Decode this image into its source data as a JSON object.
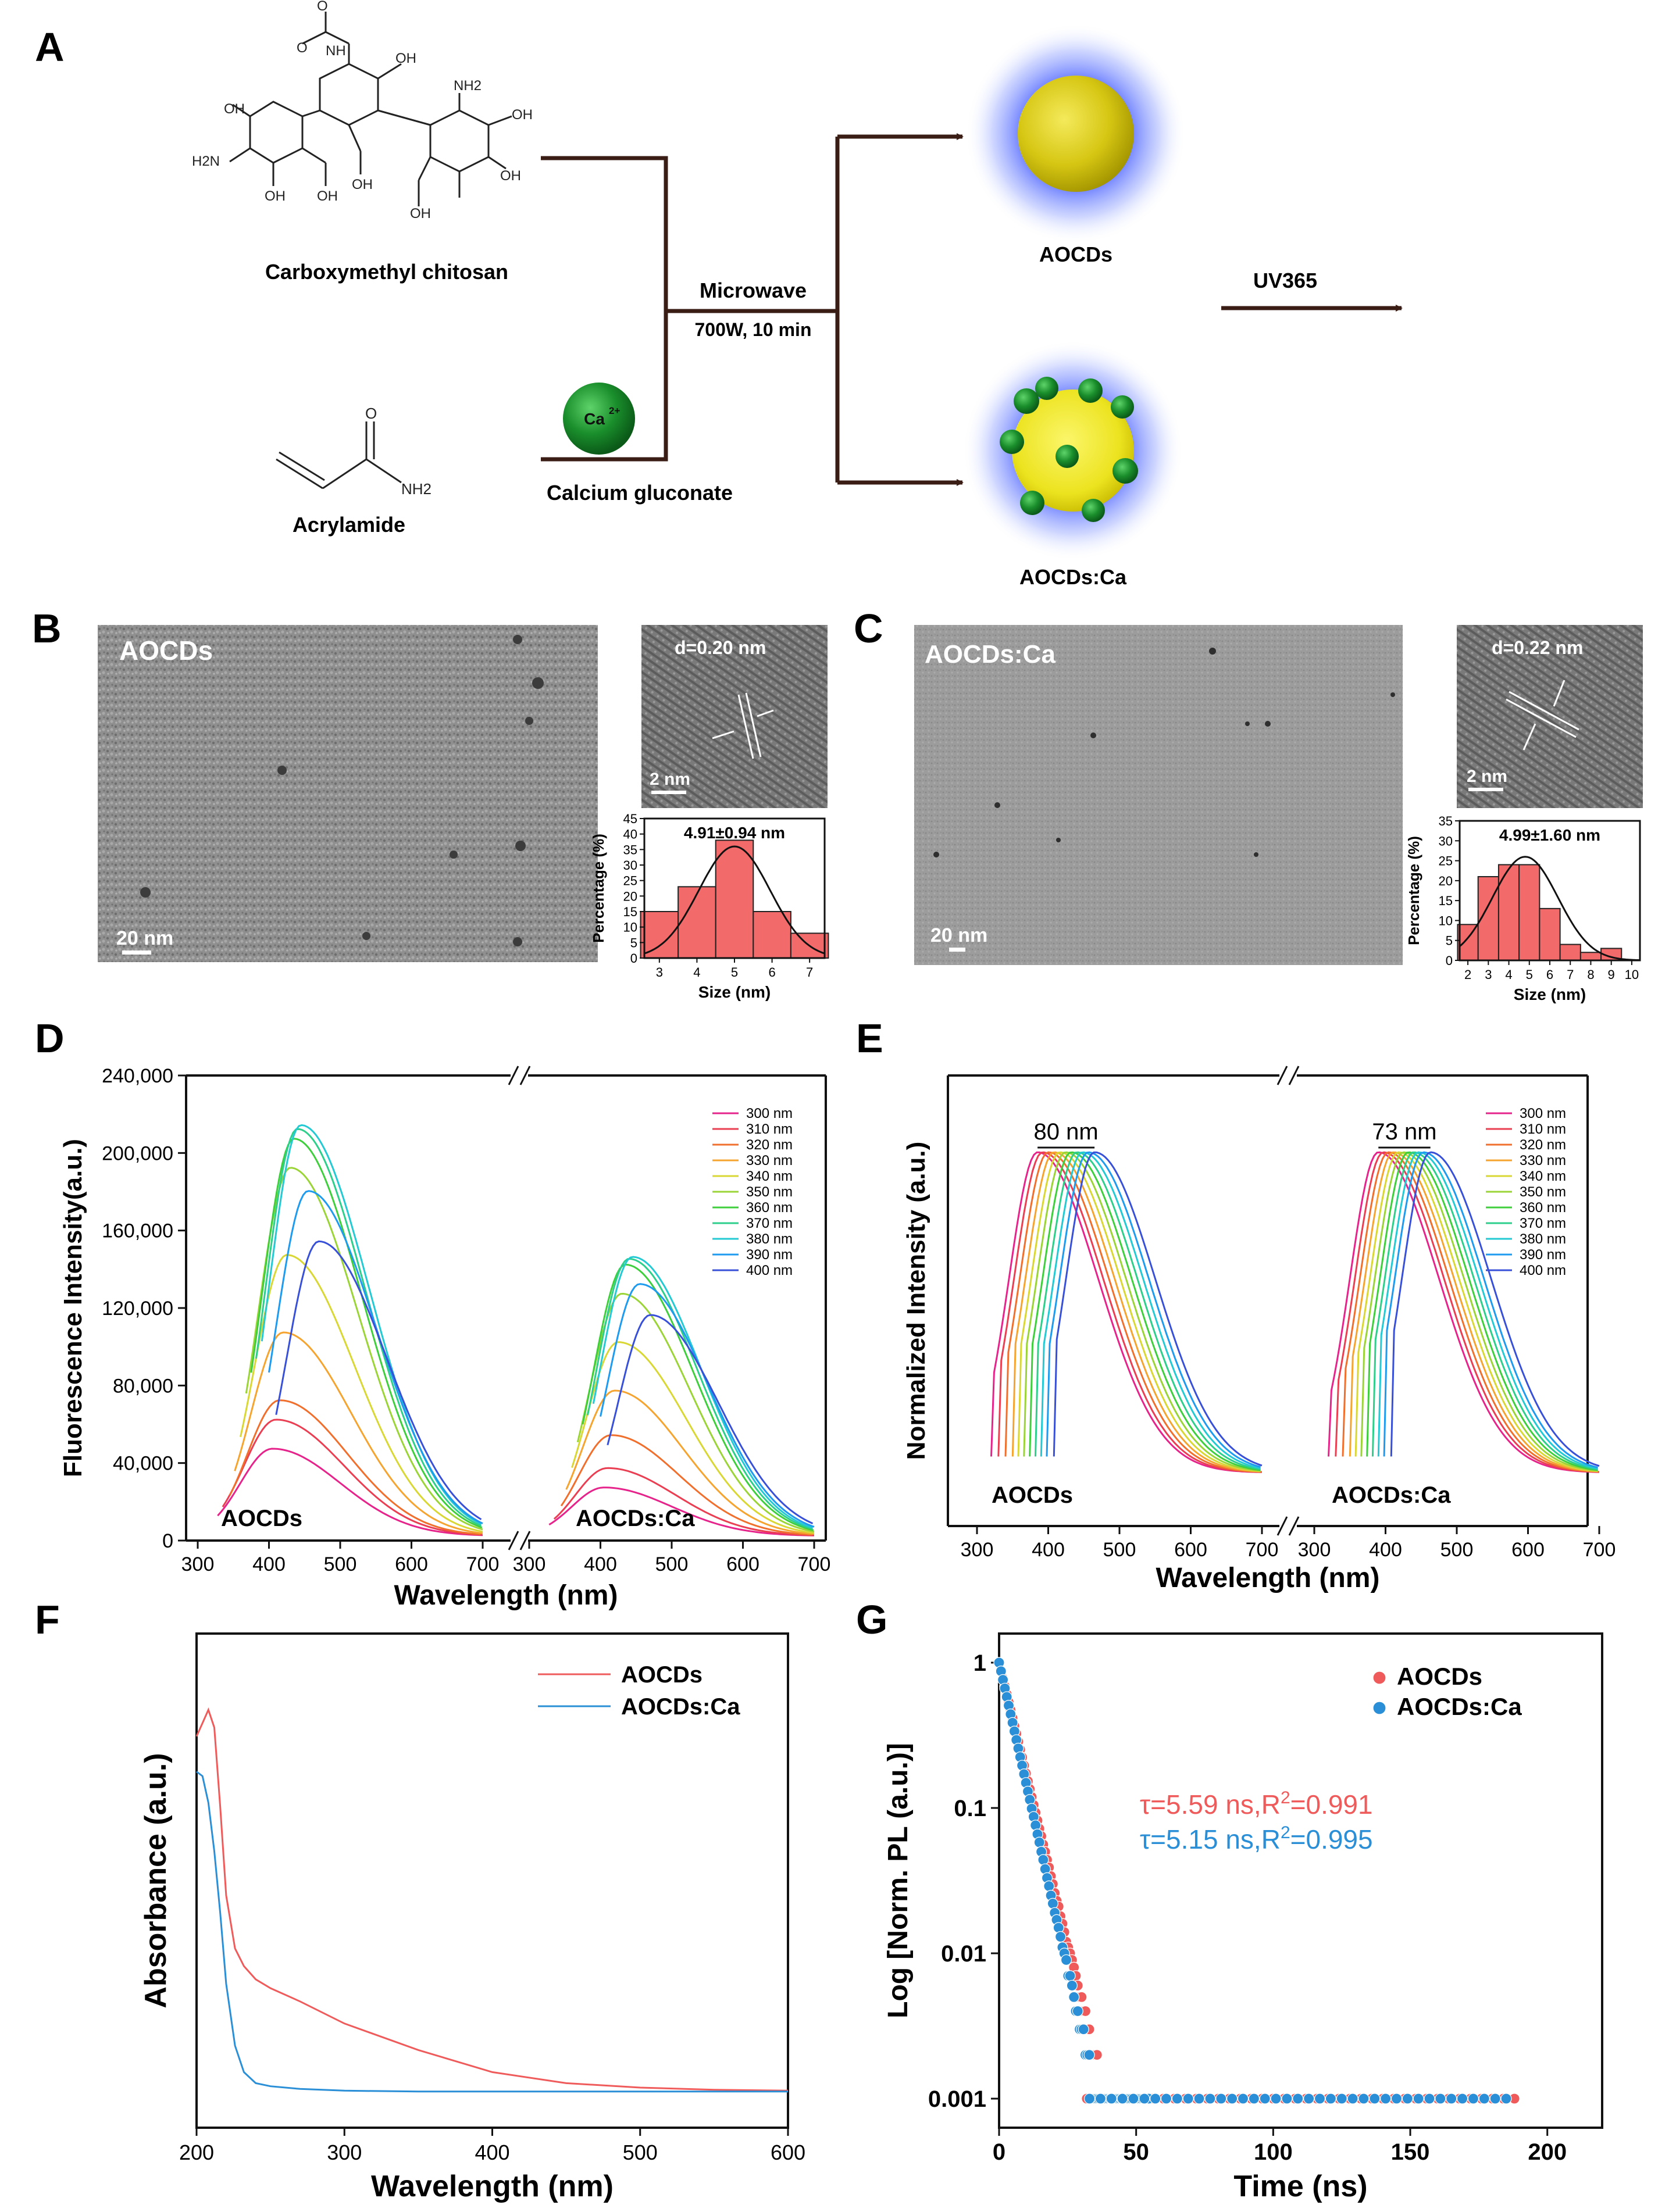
{
  "panel_labels": {
    "A": "A",
    "B": "B",
    "C": "C",
    "D": "D",
    "E": "E",
    "F": "F",
    "G": "G"
  },
  "scheme": {
    "precursor1": "Carboxymethyl chitosan",
    "precursor2": "Acrylamide",
    "precursor3": "Calcium gluconate",
    "ion_label": "Ca",
    "ion_charge": "2+",
    "process_line1": "Microwave",
    "process_line2": "700W, 10 min",
    "product1": "AOCDs",
    "product2": "AOCDs:Ca",
    "uv": "UV365",
    "atoms": {
      "oh": "OH",
      "h2n": "H2N",
      "nh2": "NH2",
      "nh": "NH",
      "o": "O"
    }
  },
  "tem": {
    "B": {
      "label": "AOCDs",
      "scalebar": "20 nm",
      "hr_spacing": "d=0.20 nm",
      "hr_scalebar": "2 nm"
    },
    "C": {
      "label": "AOCDs:Ca",
      "scalebar": "20 nm",
      "hr_spacing": "d=0.22 nm",
      "hr_scalebar": "2 nm"
    }
  },
  "colors": {
    "excitation": [
      "#e6238b",
      "#ea3f52",
      "#f06f2d",
      "#f5a42f",
      "#d9d734",
      "#9bd437",
      "#3fcf3d",
      "#2dcf8b",
      "#23c9d3",
      "#1e9bef",
      "#3850d7"
    ],
    "bar_fill": "#f26a6a",
    "aocds": "#ef5b5b",
    "aocdsca": "#2a8fd6"
  },
  "chart_data": [
    {
      "panel": "B-inset",
      "type": "bar",
      "annotation": "4.91±0.94 nm",
      "xlabel": "Size (nm)",
      "ylabel": "Percentage (%)",
      "bins": [
        3,
        4,
        5,
        6,
        7
      ],
      "bin_width": 1,
      "values": [
        15,
        23,
        38,
        15,
        8
      ],
      "fit_peak_x": 5.0,
      "fit_peak_y": 36,
      "fit_sigma": 0.95,
      "xlim": [
        2.6,
        7.4
      ],
      "ylim": [
        0,
        45
      ],
      "xticks": [
        3,
        4,
        5,
        6,
        7
      ],
      "yticks": [
        0,
        5,
        10,
        15,
        20,
        25,
        30,
        35,
        40,
        45
      ]
    },
    {
      "panel": "C-inset",
      "type": "bar",
      "annotation": "4.99±1.60 nm",
      "xlabel": "Size (nm)",
      "ylabel": "Percentage (%)",
      "bins": [
        2,
        3,
        4,
        5,
        6,
        7,
        8,
        9
      ],
      "bin_width": 1,
      "values": [
        9,
        21,
        24,
        24,
        13,
        4,
        2,
        3
      ],
      "fit_peak_x": 4.8,
      "fit_peak_y": 26,
      "fit_sigma": 1.6,
      "xlim": [
        1.6,
        10.4
      ],
      "ylim": [
        0,
        35
      ],
      "xticks": [
        2,
        3,
        4,
        5,
        6,
        7,
        8,
        9,
        10
      ],
      "yticks": [
        0,
        5,
        10,
        15,
        20,
        25,
        30,
        35
      ]
    },
    {
      "panel": "D",
      "type": "line",
      "xlabel": "Wavelength (nm)",
      "ylabel": "Fluorescence Intensity(a.u.)",
      "ylim": [
        0,
        240000
      ],
      "yticks": [
        0,
        40000,
        80000,
        120000,
        160000,
        200000,
        240000
      ],
      "ytick_labels": [
        "0",
        "40,000",
        "80,000",
        "120,000",
        "160,000",
        "200,000",
        "240,000"
      ],
      "xticks": [
        300,
        400,
        500,
        600,
        700
      ],
      "legend": [
        "300 nm",
        "310 nm",
        "320 nm",
        "330 nm",
        "340 nm",
        "350 nm",
        "360 nm",
        "370 nm",
        "380 nm",
        "390 nm",
        "400 nm"
      ],
      "groups": [
        {
          "label": "AOCDs",
          "peaks": [
            405,
            410,
            415,
            420,
            425,
            430,
            435,
            440,
            445,
            455,
            470
          ],
          "peak_values": [
            45000,
            60000,
            70000,
            105000,
            145000,
            190000,
            205000,
            210000,
            212000,
            178000,
            152000
          ]
        },
        {
          "label": "AOCDs:Ca",
          "peaks": [
            405,
            410,
            415,
            420,
            425,
            430,
            435,
            440,
            445,
            455,
            470
          ],
          "peak_values": [
            25000,
            35000,
            52000,
            75000,
            100000,
            125000,
            140000,
            143000,
            144000,
            130000,
            114000
          ]
        }
      ]
    },
    {
      "panel": "E",
      "type": "line",
      "xlabel": "Wavelength (nm)",
      "ylabel": "Normalized Intensity (a.u.)",
      "xticks": [
        300,
        400,
        500,
        600,
        700
      ],
      "legend": [
        "300 nm",
        "310 nm",
        "320 nm",
        "330 nm",
        "340 nm",
        "350 nm",
        "360 nm",
        "370 nm",
        "380 nm",
        "390 nm",
        "400 nm"
      ],
      "groups": [
        {
          "label": "AOCDs",
          "shift_label": "80 nm",
          "peaks": [
            385,
            392,
            400,
            408,
            416,
            424,
            432,
            440,
            448,
            456,
            465
          ]
        },
        {
          "label": "AOCDs:Ca",
          "shift_label": "73 nm",
          "peaks": [
            390,
            397,
            404,
            411,
            418,
            425,
            432,
            439,
            446,
            453,
            463
          ]
        }
      ]
    },
    {
      "panel": "F",
      "type": "line",
      "xlabel": "Wavelength (nm)",
      "ylabel": "Absorbance (a.u.)",
      "xlim": [
        200,
        600
      ],
      "xticks": [
        200,
        300,
        400,
        500,
        600
      ],
      "series": [
        {
          "name": "AOCDs",
          "x": [
            200,
            204,
            208,
            212,
            216,
            220,
            226,
            232,
            240,
            250,
            270,
            300,
            350,
            400,
            450,
            500,
            550,
            600
          ],
          "y": [
            0.82,
            0.85,
            0.88,
            0.84,
            0.66,
            0.46,
            0.34,
            0.3,
            0.27,
            0.25,
            0.22,
            0.17,
            0.11,
            0.06,
            0.035,
            0.025,
            0.02,
            0.018
          ]
        },
        {
          "name": "AOCDs:Ca",
          "x": [
            200,
            204,
            208,
            212,
            216,
            220,
            226,
            232,
            240,
            250,
            270,
            300,
            350,
            400,
            450,
            500,
            550,
            600
          ],
          "y": [
            0.74,
            0.73,
            0.67,
            0.56,
            0.42,
            0.26,
            0.12,
            0.06,
            0.035,
            0.028,
            0.022,
            0.018,
            0.016,
            0.016,
            0.016,
            0.016,
            0.016,
            0.016
          ]
        }
      ]
    },
    {
      "panel": "G",
      "type": "scatter",
      "xlabel": "Time (ns)",
      "ylabel": "Log [Norm. PL (a.u.)]",
      "xlim": [
        0,
        220
      ],
      "ylim_log10": [
        -3.2,
        0.2
      ],
      "xticks": [
        0,
        50,
        100,
        150,
        200
      ],
      "yticks": [
        0.001,
        0.01,
        0.1,
        1
      ],
      "ytick_labels": [
        "0.001",
        "0.01",
        "0.1",
        "1"
      ],
      "series": [
        {
          "name": "AOCDs",
          "tau_ns": 5.59,
          "annotation_prefix": "τ=5.59 ns,R",
          "annotation_sup": "2",
          "annotation_suffix": "=0.991"
        },
        {
          "name": "AOCDs:Ca",
          "tau_ns": 5.15,
          "annotation_prefix": "τ=5.15 ns,R",
          "annotation_sup": "2",
          "annotation_suffix": "=0.995"
        }
      ]
    }
  ]
}
